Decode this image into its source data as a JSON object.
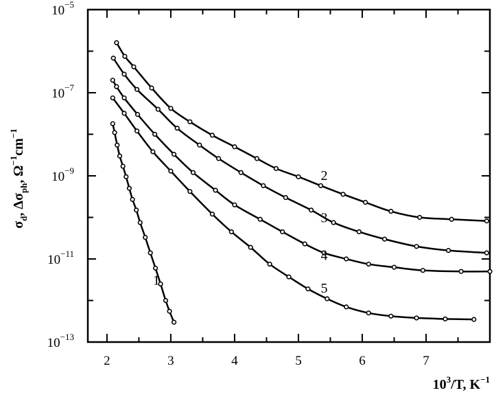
{
  "chart_data": {
    "type": "line",
    "title": "",
    "xlabel": {
      "base": "10",
      "sup": "3",
      "rest": "/T, K",
      "unit_sup": "−1"
    },
    "ylabel": "σd, Δσph, Ω−1cm−1",
    "ylabel_parts": {
      "sigma": "σ",
      "sub_d": "d",
      "sep": ", Δσ",
      "sub_ph": "ph",
      "omega": ", Ω",
      "sup1": "−1",
      "cm": "cm",
      "sup2": "−1"
    },
    "xlim": [
      1.7,
      8.0
    ],
    "ylim": [
      1e-13,
      1e-05
    ],
    "yscale": "log",
    "x_ticks": [
      "2",
      "3",
      "4",
      "5",
      "6",
      "7"
    ],
    "y_ticks": [
      {
        "base": "10",
        "exp": "−5"
      },
      {
        "base": "10",
        "exp": "−7"
      },
      {
        "base": "10",
        "exp": "−9"
      },
      {
        "base": "10",
        "exp": "−11"
      },
      {
        "base": "10",
        "exp": "−13"
      }
    ],
    "grid": false,
    "series": [
      {
        "name": "1",
        "x": [
          2.09,
          2.12,
          2.16,
          2.2,
          2.25,
          2.3,
          2.35,
          2.4,
          2.46,
          2.52,
          2.6,
          2.68,
          2.76,
          2.84,
          2.92,
          2.98,
          3.05
        ],
        "y": [
          1.8e-08,
          1.1e-08,
          5.5e-09,
          3e-09,
          1.7e-09,
          9.5e-10,
          5e-10,
          2.7e-10,
          1.5e-10,
          7.5e-11,
          3.3e-11,
          1.4e-11,
          6e-12,
          2.5e-12,
          1e-12,
          5.5e-13,
          3e-13
        ]
      },
      {
        "name": "2",
        "x": [
          2.15,
          2.28,
          2.42,
          2.7,
          3.0,
          3.3,
          3.65,
          4.0,
          4.35,
          4.65,
          5.0,
          5.35,
          5.7,
          6.05,
          6.45,
          6.9,
          7.4,
          7.95
        ],
        "y": [
          1.6e-06,
          7.5e-07,
          4.2e-07,
          1.3e-07,
          4.2e-08,
          2e-08,
          9.5e-09,
          5e-09,
          2.6e-09,
          1.5e-09,
          9.5e-10,
          5.8e-10,
          3.6e-10,
          2.3e-10,
          1.4e-10,
          1e-10,
          9e-11,
          8.2e-11
        ]
      },
      {
        "name": "3",
        "x": [
          2.1,
          2.27,
          2.47,
          2.8,
          3.1,
          3.45,
          3.75,
          4.1,
          4.45,
          4.8,
          5.2,
          5.55,
          5.95,
          6.35,
          6.85,
          7.35,
          7.95
        ],
        "y": [
          6.8e-07,
          2.8e-07,
          1.2e-07,
          4e-08,
          1.4e-08,
          5.5e-09,
          2.6e-09,
          1.2e-09,
          5.8e-10,
          3e-10,
          1.5e-10,
          7.5e-11,
          4.5e-11,
          3e-11,
          2e-11,
          1.6e-11,
          1.4e-11
        ]
      },
      {
        "name": "4",
        "x": [
          2.09,
          2.15,
          2.27,
          2.48,
          2.75,
          3.05,
          3.35,
          3.7,
          4.0,
          4.4,
          4.75,
          5.1,
          5.4,
          5.75,
          6.1,
          6.5,
          6.95,
          7.55,
          8.0
        ],
        "y": [
          2e-07,
          1.4e-07,
          7.5e-08,
          3e-08,
          1e-08,
          3.3e-09,
          1.2e-09,
          4.5e-10,
          2e-10,
          9e-11,
          4.5e-11,
          2.3e-11,
          1.4e-11,
          1e-11,
          7.5e-12,
          6.3e-12,
          5.3e-12,
          5e-12,
          5e-12
        ]
      },
      {
        "name": "5",
        "x": [
          2.09,
          2.27,
          2.47,
          2.72,
          3.0,
          3.3,
          3.65,
          3.95,
          4.25,
          4.55,
          4.85,
          5.15,
          5.45,
          5.75,
          6.1,
          6.45,
          6.85,
          7.3,
          7.75
        ],
        "y": [
          7.5e-08,
          3.2e-08,
          1.2e-08,
          3.8e-09,
          1.3e-09,
          4.2e-10,
          1.2e-10,
          4.5e-11,
          1.9e-11,
          7.5e-12,
          3.7e-12,
          1.9e-12,
          1.1e-12,
          7e-13,
          5e-13,
          4.2e-13,
          3.8e-13,
          3.6e-13,
          3.5e-13
        ]
      }
    ],
    "annotations": [
      {
        "text": "1",
        "x": 2.72,
        "y": 2.4e-12
      },
      {
        "text": "2",
        "x": 5.35,
        "y": 8e-10
      },
      {
        "text": "3",
        "x": 5.35,
        "y": 7.6e-11
      },
      {
        "text": "4",
        "x": 5.35,
        "y": 9.5e-12
      },
      {
        "text": "5",
        "x": 5.35,
        "y": 1.55e-12
      }
    ]
  }
}
